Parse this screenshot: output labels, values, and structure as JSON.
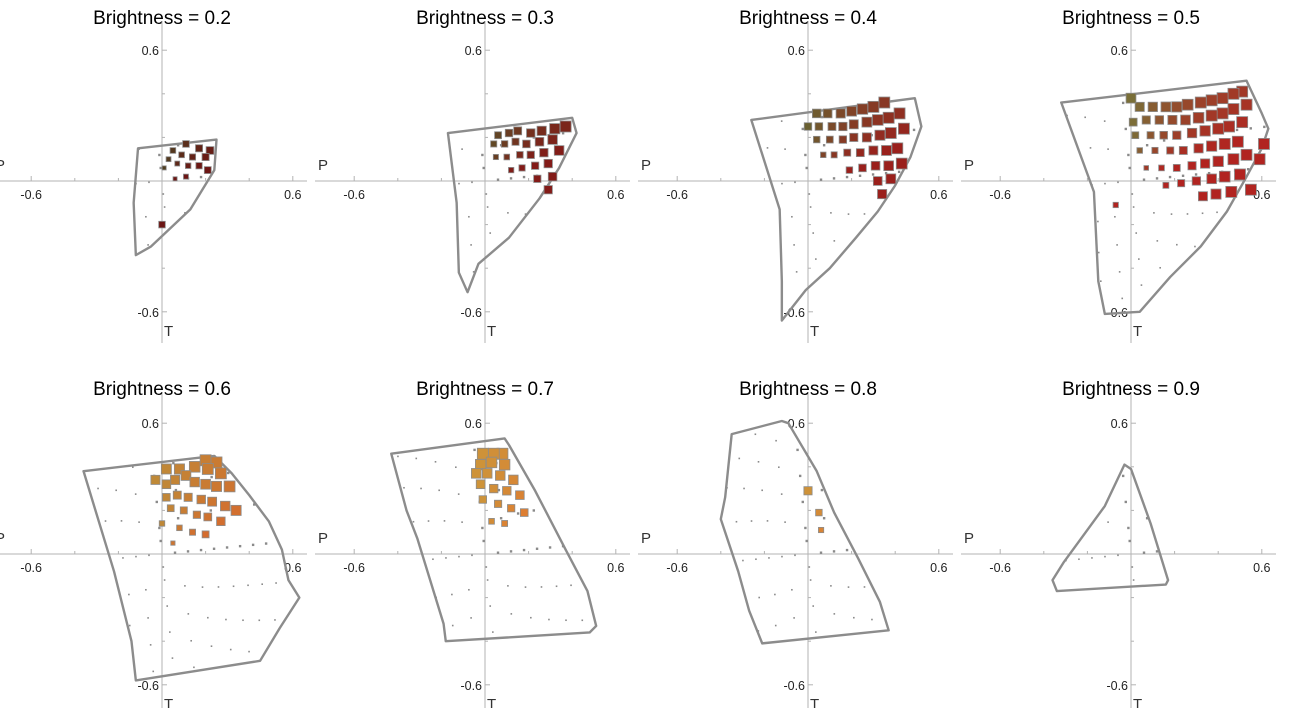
{
  "chart_data": [
    {
      "type": "scatter",
      "title": "Brightness = 0.2",
      "xlabel": "P",
      "ylabel": "T",
      "xlim": [
        -0.75,
        0.75
      ],
      "ylim": [
        -0.6,
        0.6
      ],
      "xticks": [
        -0.6,
        0.6
      ],
      "yticks": [
        0.6,
        -0.6
      ],
      "grid": false,
      "gamut_boundary": [
        [
          -0.11,
          0.15
        ],
        [
          0.25,
          0.19
        ],
        [
          0.24,
          0.05
        ],
        [
          0.13,
          -0.13
        ],
        [
          -0.05,
          -0.3
        ],
        [
          -0.12,
          -0.34
        ],
        [
          -0.13,
          -0.1
        ],
        [
          -0.11,
          0.15
        ]
      ],
      "highlight_marks": [
        [
          0.11,
          0.17
        ],
        [
          0.17,
          0.15
        ],
        [
          0.22,
          0.14
        ],
        [
          0.05,
          0.14
        ],
        [
          0.09,
          0.12
        ],
        [
          0.14,
          0.11
        ],
        [
          0.2,
          0.11
        ],
        [
          0.03,
          0.1
        ],
        [
          0.07,
          0.08
        ],
        [
          0.12,
          0.07
        ],
        [
          0.17,
          0.07
        ],
        [
          0.21,
          0.05
        ],
        [
          0.01,
          0.06
        ],
        [
          0.06,
          0.01
        ],
        [
          0.11,
          0.02
        ],
        [
          0.0,
          -0.2
        ]
      ]
    },
    {
      "type": "scatter",
      "title": "Brightness = 0.3",
      "xlabel": "P",
      "ylabel": "T",
      "xlim": [
        -0.75,
        0.75
      ],
      "ylim": [
        -0.6,
        0.6
      ],
      "xticks": [
        -0.6,
        0.6
      ],
      "yticks": [
        0.6,
        -0.6
      ],
      "grid": false,
      "gamut_boundary": [
        [
          -0.17,
          0.22
        ],
        [
          0.4,
          0.29
        ],
        [
          0.42,
          0.22
        ],
        [
          0.34,
          0.06
        ],
        [
          0.25,
          -0.08
        ],
        [
          0.11,
          -0.26
        ],
        [
          -0.03,
          -0.38
        ],
        [
          -0.08,
          -0.51
        ],
        [
          -0.12,
          -0.42
        ],
        [
          -0.13,
          -0.1
        ],
        [
          -0.17,
          0.22
        ]
      ],
      "highlight_marks": [
        [
          0.37,
          0.25
        ],
        [
          0.32,
          0.24
        ],
        [
          0.26,
          0.23
        ],
        [
          0.21,
          0.22
        ],
        [
          0.15,
          0.23
        ],
        [
          0.11,
          0.22
        ],
        [
          0.06,
          0.21
        ],
        [
          0.31,
          0.19
        ],
        [
          0.25,
          0.18
        ],
        [
          0.19,
          0.17
        ],
        [
          0.14,
          0.18
        ],
        [
          0.09,
          0.17
        ],
        [
          0.04,
          0.17
        ],
        [
          0.34,
          0.14
        ],
        [
          0.27,
          0.13
        ],
        [
          0.21,
          0.12
        ],
        [
          0.16,
          0.12
        ],
        [
          0.1,
          0.11
        ],
        [
          0.05,
          0.11
        ],
        [
          0.29,
          0.08
        ],
        [
          0.23,
          0.07
        ],
        [
          0.17,
          0.06
        ],
        [
          0.12,
          0.05
        ],
        [
          0.31,
          0.02
        ],
        [
          0.24,
          0.01
        ],
        [
          0.29,
          -0.04
        ]
      ]
    },
    {
      "type": "scatter",
      "title": "Brightness = 0.4",
      "xlabel": "P",
      "ylabel": "T",
      "xlim": [
        -0.75,
        0.75
      ],
      "ylim": [
        -0.6,
        0.6
      ],
      "xticks": [
        -0.6,
        0.6
      ],
      "yticks": [
        0.6,
        -0.6
      ],
      "grid": false,
      "gamut_boundary": [
        [
          -0.26,
          0.28
        ],
        [
          0.49,
          0.38
        ],
        [
          0.52,
          0.25
        ],
        [
          0.47,
          0.11
        ],
        [
          0.4,
          -0.02
        ],
        [
          0.32,
          -0.14
        ],
        [
          0.22,
          -0.26
        ],
        [
          0.1,
          -0.4
        ],
        [
          -0.01,
          -0.5
        ],
        [
          -0.12,
          -0.64
        ],
        [
          -0.12,
          -0.46
        ],
        [
          -0.13,
          -0.13
        ],
        [
          -0.26,
          0.28
        ]
      ],
      "highlight_marks": [
        [
          0.35,
          0.36
        ],
        [
          0.3,
          0.34
        ],
        [
          0.25,
          0.33
        ],
        [
          0.2,
          0.32
        ],
        [
          0.15,
          0.31
        ],
        [
          0.09,
          0.31
        ],
        [
          0.04,
          0.31
        ],
        [
          0.42,
          0.31
        ],
        [
          0.37,
          0.29
        ],
        [
          0.32,
          0.28
        ],
        [
          0.27,
          0.27
        ],
        [
          0.21,
          0.26
        ],
        [
          0.16,
          0.25
        ],
        [
          0.11,
          0.25
        ],
        [
          0.05,
          0.25
        ],
        [
          0.0,
          0.25
        ],
        [
          0.44,
          0.24
        ],
        [
          0.38,
          0.22
        ],
        [
          0.33,
          0.21
        ],
        [
          0.27,
          0.2
        ],
        [
          0.21,
          0.2
        ],
        [
          0.16,
          0.19
        ],
        [
          0.1,
          0.19
        ],
        [
          0.04,
          0.19
        ],
        [
          0.41,
          0.15
        ],
        [
          0.36,
          0.14
        ],
        [
          0.3,
          0.14
        ],
        [
          0.24,
          0.13
        ],
        [
          0.18,
          0.13
        ],
        [
          0.12,
          0.12
        ],
        [
          0.07,
          0.12
        ],
        [
          0.43,
          0.08
        ],
        [
          0.37,
          0.07
        ],
        [
          0.31,
          0.07
        ],
        [
          0.25,
          0.06
        ],
        [
          0.19,
          0.05
        ],
        [
          0.38,
          0.01
        ],
        [
          0.32,
          0.0
        ],
        [
          0.34,
          -0.06
        ]
      ]
    },
    {
      "type": "scatter",
      "title": "Brightness = 0.5",
      "xlabel": "P",
      "ylabel": "T",
      "xlim": [
        -0.75,
        0.75
      ],
      "ylim": [
        -0.6,
        0.6
      ],
      "xticks": [
        -0.6,
        0.6
      ],
      "yticks": [
        0.6,
        -0.6
      ],
      "grid": false,
      "gamut_boundary": [
        [
          -0.32,
          0.36
        ],
        [
          0.53,
          0.46
        ],
        [
          0.6,
          0.31
        ],
        [
          0.63,
          0.24
        ],
        [
          0.6,
          0.15
        ],
        [
          0.53,
          0.02
        ],
        [
          0.44,
          -0.14
        ],
        [
          0.32,
          -0.3
        ],
        [
          0.18,
          -0.44
        ],
        [
          0.04,
          -0.6
        ],
        [
          -0.12,
          -0.61
        ],
        [
          -0.15,
          -0.46
        ],
        [
          -0.17,
          -0.05
        ],
        [
          -0.32,
          0.36
        ]
      ],
      "highlight_marks": [
        [
          0.51,
          0.41
        ],
        [
          0.47,
          0.4
        ],
        [
          0.42,
          0.38
        ],
        [
          0.37,
          0.37
        ],
        [
          0.32,
          0.36
        ],
        [
          0.26,
          0.35
        ],
        [
          0.21,
          0.34
        ],
        [
          0.16,
          0.34
        ],
        [
          0.1,
          0.34
        ],
        [
          0.04,
          0.34
        ],
        [
          0.0,
          0.38
        ],
        [
          0.53,
          0.35
        ],
        [
          0.47,
          0.33
        ],
        [
          0.42,
          0.31
        ],
        [
          0.37,
          0.3
        ],
        [
          0.31,
          0.29
        ],
        [
          0.25,
          0.28
        ],
        [
          0.19,
          0.28
        ],
        [
          0.13,
          0.28
        ],
        [
          0.07,
          0.28
        ],
        [
          0.01,
          0.27
        ],
        [
          0.51,
          0.27
        ],
        [
          0.45,
          0.25
        ],
        [
          0.4,
          0.24
        ],
        [
          0.34,
          0.23
        ],
        [
          0.28,
          0.22
        ],
        [
          0.21,
          0.21
        ],
        [
          0.15,
          0.21
        ],
        [
          0.09,
          0.21
        ],
        [
          0.02,
          0.21
        ],
        [
          0.49,
          0.18
        ],
        [
          0.43,
          0.17
        ],
        [
          0.37,
          0.16
        ],
        [
          0.31,
          0.15
        ],
        [
          0.24,
          0.14
        ],
        [
          0.18,
          0.14
        ],
        [
          0.11,
          0.14
        ],
        [
          0.04,
          0.14
        ],
        [
          0.53,
          0.12
        ],
        [
          0.47,
          0.1
        ],
        [
          0.4,
          0.09
        ],
        [
          0.34,
          0.08
        ],
        [
          0.28,
          0.07
        ],
        [
          0.21,
          0.06
        ],
        [
          0.14,
          0.06
        ],
        [
          0.07,
          0.06
        ],
        [
          0.5,
          0.03
        ],
        [
          0.43,
          0.02
        ],
        [
          0.37,
          0.01
        ],
        [
          0.3,
          0.0
        ],
        [
          0.23,
          -0.01
        ],
        [
          0.16,
          -0.02
        ],
        [
          0.55,
          -0.04
        ],
        [
          0.46,
          -0.05
        ],
        [
          0.39,
          -0.06
        ],
        [
          0.33,
          -0.07
        ],
        [
          0.59,
          0.1
        ],
        [
          0.61,
          0.17
        ],
        [
          -0.07,
          -0.11
        ]
      ]
    },
    {
      "type": "scatter",
      "title": "Brightness = 0.6",
      "xlabel": "P",
      "ylabel": "T",
      "xlim": [
        -0.75,
        0.75
      ],
      "ylim": [
        -0.6,
        0.6
      ],
      "xticks": [
        -0.6,
        0.6
      ],
      "yticks": [
        0.6,
        -0.6
      ],
      "grid": false,
      "gamut_boundary": [
        [
          -0.36,
          0.38
        ],
        [
          0.24,
          0.45
        ],
        [
          0.32,
          0.37
        ],
        [
          0.4,
          0.27
        ],
        [
          0.49,
          0.15
        ],
        [
          0.55,
          0.02
        ],
        [
          0.58,
          -0.12
        ],
        [
          0.63,
          -0.2
        ],
        [
          0.54,
          -0.34
        ],
        [
          0.45,
          -0.49
        ],
        [
          -0.12,
          -0.58
        ],
        [
          -0.14,
          -0.4
        ],
        [
          -0.22,
          -0.08
        ],
        [
          -0.36,
          0.38
        ]
      ],
      "highlight_marks": [
        [
          0.2,
          0.43
        ],
        [
          0.25,
          0.42
        ],
        [
          0.15,
          0.4
        ],
        [
          0.21,
          0.39
        ],
        [
          0.27,
          0.37
        ],
        [
          0.08,
          0.39
        ],
        [
          0.02,
          0.39
        ],
        [
          0.11,
          0.36
        ],
        [
          0.06,
          0.34
        ],
        [
          0.15,
          0.33
        ],
        [
          0.2,
          0.32
        ],
        [
          0.25,
          0.31
        ],
        [
          0.31,
          0.31
        ],
        [
          0.02,
          0.32
        ],
        [
          -0.03,
          0.34
        ],
        [
          0.07,
          0.27
        ],
        [
          0.12,
          0.26
        ],
        [
          0.18,
          0.25
        ],
        [
          0.23,
          0.24
        ],
        [
          0.29,
          0.22
        ],
        [
          0.34,
          0.2
        ],
        [
          0.02,
          0.26
        ],
        [
          0.04,
          0.21
        ],
        [
          0.1,
          0.2
        ],
        [
          0.16,
          0.18
        ],
        [
          0.21,
          0.17
        ],
        [
          0.27,
          0.15
        ],
        [
          0.08,
          0.12
        ],
        [
          0.14,
          0.1
        ],
        [
          0.2,
          0.09
        ],
        [
          0.05,
          0.05
        ],
        [
          0.0,
          0.14
        ]
      ]
    },
    {
      "type": "scatter",
      "title": "Brightness = 0.7",
      "xlabel": "P",
      "ylabel": "T",
      "xlim": [
        -0.75,
        0.75
      ],
      "ylim": [
        -0.6,
        0.6
      ],
      "xticks": [
        -0.6,
        0.6
      ],
      "yticks": [
        0.6,
        -0.6
      ],
      "grid": false,
      "gamut_boundary": [
        [
          -0.43,
          0.46
        ],
        [
          0.09,
          0.53
        ],
        [
          0.11,
          0.5
        ],
        [
          0.23,
          0.29
        ],
        [
          0.37,
          0.02
        ],
        [
          0.47,
          -0.17
        ],
        [
          0.51,
          -0.33
        ],
        [
          0.48,
          -0.36
        ],
        [
          -0.18,
          -0.4
        ],
        [
          -0.19,
          -0.32
        ],
        [
          -0.31,
          0.07
        ],
        [
          -0.36,
          0.2
        ],
        [
          -0.43,
          0.46
        ]
      ],
      "highlight_marks": [
        [
          0.08,
          0.46
        ],
        [
          0.04,
          0.46
        ],
        [
          -0.01,
          0.46
        ],
        [
          0.03,
          0.42
        ],
        [
          -0.02,
          0.41
        ],
        [
          0.09,
          0.41
        ],
        [
          0.01,
          0.37
        ],
        [
          0.07,
          0.36
        ],
        [
          0.13,
          0.34
        ],
        [
          -0.04,
          0.37
        ],
        [
          -0.02,
          0.32
        ],
        [
          0.04,
          0.3
        ],
        [
          0.1,
          0.29
        ],
        [
          0.16,
          0.27
        ],
        [
          -0.01,
          0.25
        ],
        [
          0.06,
          0.23
        ],
        [
          0.12,
          0.21
        ],
        [
          0.18,
          0.19
        ],
        [
          0.03,
          0.15
        ],
        [
          0.09,
          0.14
        ]
      ]
    },
    {
      "type": "scatter",
      "title": "Brightness = 0.8",
      "xlabel": "P",
      "ylabel": "T",
      "xlim": [
        -0.75,
        0.75
      ],
      "ylim": [
        -0.6,
        0.6
      ],
      "xticks": [
        -0.6,
        0.6
      ],
      "yticks": [
        0.6,
        -0.6
      ],
      "grid": false,
      "gamut_boundary": [
        [
          -0.35,
          0.55
        ],
        [
          -0.12,
          0.61
        ],
        [
          -0.09,
          0.6
        ],
        [
          0.04,
          0.38
        ],
        [
          0.12,
          0.19
        ],
        [
          0.23,
          -0.02
        ],
        [
          0.33,
          -0.22
        ],
        [
          0.37,
          -0.35
        ],
        [
          -0.21,
          -0.41
        ],
        [
          -0.27,
          -0.26
        ],
        [
          -0.32,
          -0.08
        ],
        [
          -0.4,
          0.16
        ],
        [
          -0.38,
          0.26
        ],
        [
          -0.35,
          0.55
        ]
      ],
      "highlight_marks": [
        [
          0.0,
          0.29
        ],
        [
          0.05,
          0.19
        ],
        [
          0.06,
          0.11
        ]
      ]
    },
    {
      "type": "scatter",
      "title": "Brightness = 0.9",
      "xlabel": "P",
      "ylabel": "T",
      "xlim": [
        -0.75,
        0.75
      ],
      "ylim": [
        -0.6,
        0.6
      ],
      "xticks": [
        -0.6,
        0.6
      ],
      "yticks": [
        0.6,
        -0.6
      ],
      "grid": false,
      "gamut_boundary": [
        [
          -0.03,
          0.41
        ],
        [
          0.0,
          0.39
        ],
        [
          0.09,
          0.14
        ],
        [
          0.17,
          -0.12
        ],
        [
          0.16,
          -0.14
        ],
        [
          -0.34,
          -0.17
        ],
        [
          -0.36,
          -0.12
        ],
        [
          -0.31,
          -0.04
        ],
        [
          -0.12,
          0.22
        ],
        [
          -0.03,
          0.41
        ]
      ],
      "highlight_marks": []
    }
  ]
}
